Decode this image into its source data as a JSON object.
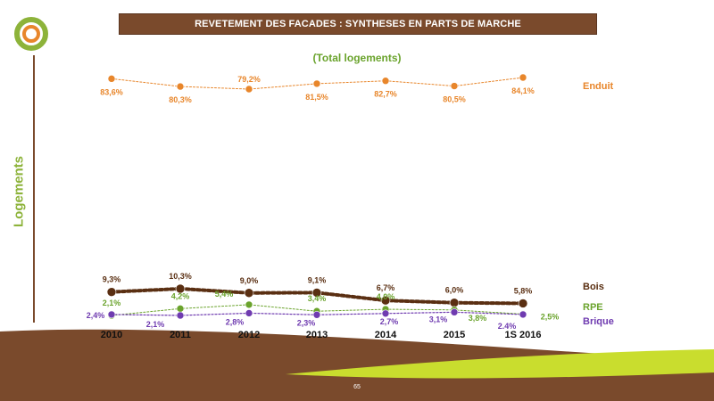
{
  "header": {
    "title": "REVETEMENT DES FACADES : SYNTHESES EN PARTS DE MARCHE"
  },
  "footer": {
    "page_number": "65"
  },
  "colors": {
    "title_bg": "#7a4a2c",
    "enduit": "#e8862b",
    "bois": "#5a2f12",
    "rpe": "#6aa32c",
    "brique": "#6f3bb0",
    "accent_green": "#8db33a",
    "wave_brown": "#7a4a2c",
    "wave_green": "#c9dd2e"
  },
  "chart_data": {
    "type": "line",
    "title": "(Total logements)",
    "ylabel": "Logements",
    "xlabel": "",
    "categories": [
      "2010",
      "2011",
      "2012",
      "2013",
      "2014",
      "2015",
      "1S 2016"
    ],
    "series": [
      {
        "name": "Enduit",
        "values": [
          83.6,
          80.3,
          79.2,
          81.5,
          82.7,
          80.5,
          84.1
        ],
        "labels": [
          "83,6%",
          "80,3%",
          "79,2%",
          "81,5%",
          "82,7%",
          "80,5%",
          "84,1%"
        ]
      },
      {
        "name": "Bois",
        "values": [
          9.3,
          10.3,
          9.0,
          9.1,
          6.7,
          6.0,
          5.8
        ],
        "labels": [
          "9,3%",
          "10,3%",
          "9,0%",
          "9,1%",
          "6,7%",
          "6,0%",
          "5,8%"
        ]
      },
      {
        "name": "RPE",
        "values": [
          2.1,
          4.2,
          5.4,
          3.4,
          4.0,
          3.8,
          2.5
        ],
        "labels": [
          "2,1%",
          "4,2%",
          "5,4%",
          "3,4%",
          "4,0%",
          "3,8%",
          "2,5%"
        ]
      },
      {
        "name": "Brique",
        "values": [
          2.4,
          2.1,
          2.8,
          2.3,
          2.7,
          3.1,
          2.4
        ],
        "labels": [
          "2,4%",
          "2,1%",
          "2,8%",
          "2,3%",
          "2,7%",
          "3,1%",
          "2.4%"
        ]
      }
    ],
    "grid": false,
    "legend": "right"
  }
}
